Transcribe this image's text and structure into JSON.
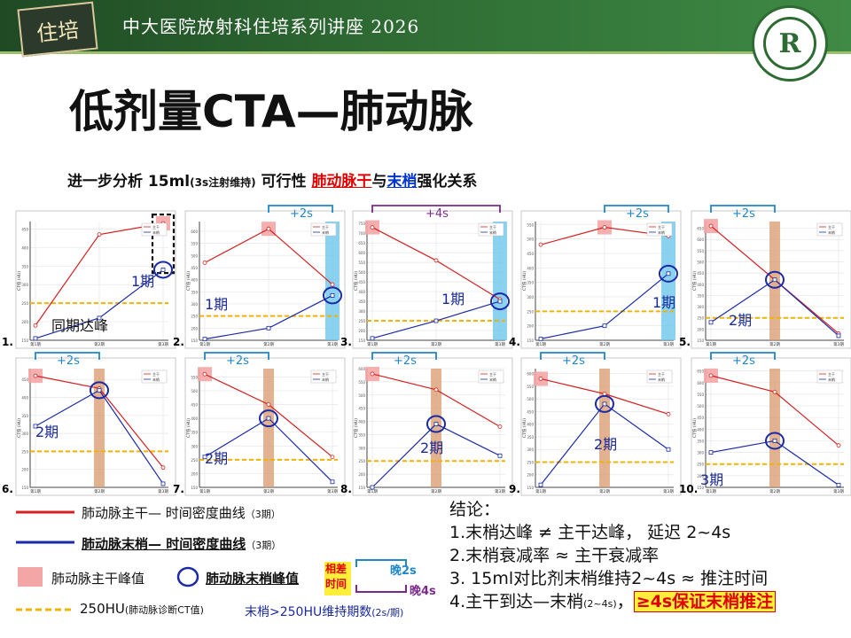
{
  "header": {
    "logo_text": "住培",
    "title": "中大医院放射科住培系列讲座  2026",
    "emblem_text": "R"
  },
  "page_title": "低剂量CTA—肺动脉",
  "subtitle": {
    "part1": "进一步分析 15ml",
    "part1_small": "(3s注射维持)",
    "part2": " 可行性   ",
    "red": "肺动脉干",
    "mid": "与",
    "blue": "末梢",
    "end": "强化关系"
  },
  "colors": {
    "trunk": "#d42020",
    "tip": "#1a2aa8",
    "threshold": "#f0b400",
    "trunk_peak": "#f4a6a6",
    "blue_band": "#6ec6ec",
    "orange_band": "#d99a6c",
    "delay_blue": "#1e88c8",
    "delay_purple": "#7a2a8a",
    "header_green": "#2e6b33"
  },
  "chart_data": {
    "type": "line",
    "x_categories": [
      "第1期",
      "第2期",
      "第3期"
    ],
    "ylabel": "CT值 (HU)",
    "legend": [
      "主干",
      "末梢"
    ],
    "threshold": 250,
    "panels": [
      {
        "n": "1.",
        "ylim": [
          150,
          470
        ],
        "ticks": [
          150,
          200,
          250,
          300,
          350,
          400,
          450
        ],
        "trunk": [
          190,
          435,
          465
        ],
        "tip": [
          155,
          210,
          340
        ],
        "peak_band": "red-dashed",
        "label": "1期",
        "note": "同期达峰",
        "delay": ""
      },
      {
        "n": "2.",
        "ylim": [
          150,
          640
        ],
        "ticks": [
          150,
          200,
          250,
          300,
          350,
          400,
          450,
          500,
          550,
          600
        ],
        "trunk": [
          470,
          610,
          380
        ],
        "tip": [
          155,
          200,
          335
        ],
        "peak_band": "blue",
        "label": "1期",
        "note": "",
        "delay": "+2s"
      },
      {
        "n": "3.",
        "ylim": [
          150,
          760
        ],
        "ticks": [
          150,
          200,
          250,
          300,
          350,
          400,
          450,
          500,
          550,
          600,
          650,
          700,
          750
        ],
        "trunk": [
          730,
          560,
          360
        ],
        "tip": [
          160,
          250,
          350
        ],
        "peak_band": "blue",
        "label": "1期",
        "note": "",
        "delay": "+4s"
      },
      {
        "n": "4.",
        "ylim": [
          150,
          560
        ],
        "ticks": [
          150,
          200,
          250,
          300,
          350,
          400,
          450,
          500,
          550
        ],
        "trunk": [
          480,
          540,
          510
        ],
        "tip": [
          155,
          200,
          380
        ],
        "peak_band": "blue",
        "label": "1期",
        "note": "",
        "delay": "+2s"
      },
      {
        "n": "5.",
        "ylim": [
          150,
          680
        ],
        "ticks": [
          150,
          200,
          250,
          300,
          350,
          400,
          450,
          500,
          550,
          600,
          650
        ],
        "trunk": [
          660,
          420,
          180
        ],
        "tip": [
          230,
          420,
          170
        ],
        "peak_band": "orange",
        "label": "2期",
        "note": "",
        "delay": "+2s"
      },
      {
        "n": "6.",
        "ylim": [
          150,
          480
        ],
        "ticks": [
          150,
          200,
          250,
          300,
          350,
          400,
          450
        ],
        "trunk": [
          460,
          425,
          205
        ],
        "tip": [
          320,
          420,
          160
        ],
        "peak_band": "orange",
        "label": "2期",
        "note": "",
        "delay": "+2s"
      },
      {
        "n": "7.",
        "ylim": [
          150,
          580
        ],
        "ticks": [
          150,
          200,
          250,
          300,
          350,
          400,
          450,
          500,
          550
        ],
        "trunk": [
          560,
          450,
          260
        ],
        "tip": [
          260,
          400,
          170
        ],
        "peak_band": "orange",
        "label": "2期",
        "note": "",
        "delay": "+2s"
      },
      {
        "n": "8.",
        "ylim": [
          150,
          600
        ],
        "ticks": [
          150,
          200,
          250,
          300,
          350,
          400,
          450,
          500,
          550,
          600
        ],
        "trunk": [
          580,
          520,
          380
        ],
        "tip": [
          150,
          390,
          270
        ],
        "peak_band": "orange",
        "label": "2期",
        "note": "",
        "delay": "+2s"
      },
      {
        "n": "9.",
        "ylim": [
          150,
          620
        ],
        "ticks": [
          150,
          200,
          250,
          300,
          350,
          400,
          450,
          500,
          550,
          600
        ],
        "trunk": [
          580,
          520,
          440
        ],
        "tip": [
          160,
          480,
          300
        ],
        "peak_band": "orange",
        "label": "2期",
        "note": "",
        "delay": "+2s"
      },
      {
        "n": "10.",
        "ylim": [
          150,
          660
        ],
        "ticks": [
          150,
          200,
          250,
          300,
          350,
          400,
          450,
          500,
          550,
          600,
          650
        ],
        "trunk": [
          630,
          560,
          330
        ],
        "tip": [
          300,
          350,
          160
        ],
        "peak_band": "orange",
        "label": "3期",
        "note": "",
        "delay": "+2s"
      }
    ]
  },
  "legend_section": {
    "trunk_line": "肺动脉主干— 时间密度曲线",
    "trunk_line_small": "（3期）",
    "tip_line": "肺动脉末梢— 时间密度曲线",
    "tip_line_small": "（3期）",
    "trunk_peak": "肺动脉主干峰值",
    "tip_peak": "肺动脉末梢峰值",
    "diff_label_1": "相差",
    "diff_label_2": "时间",
    "late_2s": "晚2s",
    "late_4s": "晚4s",
    "threshold_label": "250HU",
    "threshold_small": "(肺动脉诊断CT值)",
    "sustain_label": "末梢>250HU维持期数",
    "sustain_small": "(2s/期)"
  },
  "conclusions": {
    "heading": "结论：",
    "items": [
      "1.末梢达峰 ≠ 主干达峰， 延迟 2~4s",
      "2.末梢衰减率 ≈ 主干衰减率",
      "3. 15ml对比剂末梢维持2~4s ≈ 推注时间"
    ],
    "item4_a": "4.主干到达—末梢",
    "item4_small": "(2~4s)",
    "item4_b": "，",
    "item4_hl": "≥4s保证末梢推注"
  }
}
